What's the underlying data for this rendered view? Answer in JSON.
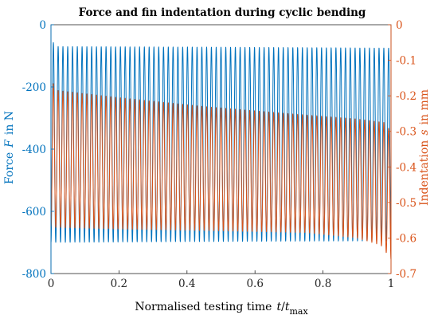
{
  "chart_data": {
    "type": "line",
    "title": "Force and fin indentation during cyclic bending",
    "x_axis": {
      "label_prefix": "Normalised testing time",
      "label_var": "t",
      "label_slash": "/",
      "label_denom": "t",
      "label_denom_sub": "max",
      "range": [
        0,
        1
      ],
      "ticks": [
        "0",
        "0.2",
        "0.4",
        "0.6",
        "0.8",
        "1"
      ]
    },
    "y_axis_left": {
      "label_prefix": "Force",
      "label_var": "F",
      "label_suffix": "in N",
      "range": [
        -800,
        0
      ],
      "ticks": [
        "0",
        "-200",
        "-400",
        "-600",
        "-800"
      ],
      "color": "#0072BD"
    },
    "y_axis_right": {
      "label_prefix": "Indentation",
      "label_var": "s",
      "label_suffix": "in mm",
      "range": [
        -0.7,
        0
      ],
      "ticks": [
        "0",
        "-0.1",
        "-0.2",
        "-0.3",
        "-0.4",
        "-0.5",
        "-0.6",
        "-0.7"
      ],
      "color": "#D95319"
    },
    "grid": false,
    "series": [
      {
        "axis": "left",
        "color": "#0072BD",
        "cycles": 71,
        "peak": [
          [
            0,
            -50
          ],
          [
            0.02,
            -70
          ],
          [
            0.5,
            -72
          ],
          [
            1,
            -75
          ]
        ],
        "trough": [
          [
            0,
            -700
          ],
          [
            0.3,
            -698
          ],
          [
            0.7,
            -696
          ],
          [
            1,
            -695
          ]
        ]
      },
      {
        "axis": "right",
        "color": "#D95319",
        "cycles": 71,
        "peak": [
          [
            0,
            -0.155
          ],
          [
            0.02,
            -0.185
          ],
          [
            0.2,
            -0.205
          ],
          [
            0.45,
            -0.23
          ],
          [
            0.7,
            -0.25
          ],
          [
            0.9,
            -0.265
          ],
          [
            0.98,
            -0.275
          ],
          [
            1,
            -0.3
          ]
        ],
        "trough": [
          [
            0,
            -0.57
          ],
          [
            0.2,
            -0.575
          ],
          [
            0.5,
            -0.58
          ],
          [
            0.75,
            -0.585
          ],
          [
            0.9,
            -0.6
          ],
          [
            0.97,
            -0.62
          ],
          [
            1,
            -0.66
          ]
        ]
      }
    ]
  }
}
